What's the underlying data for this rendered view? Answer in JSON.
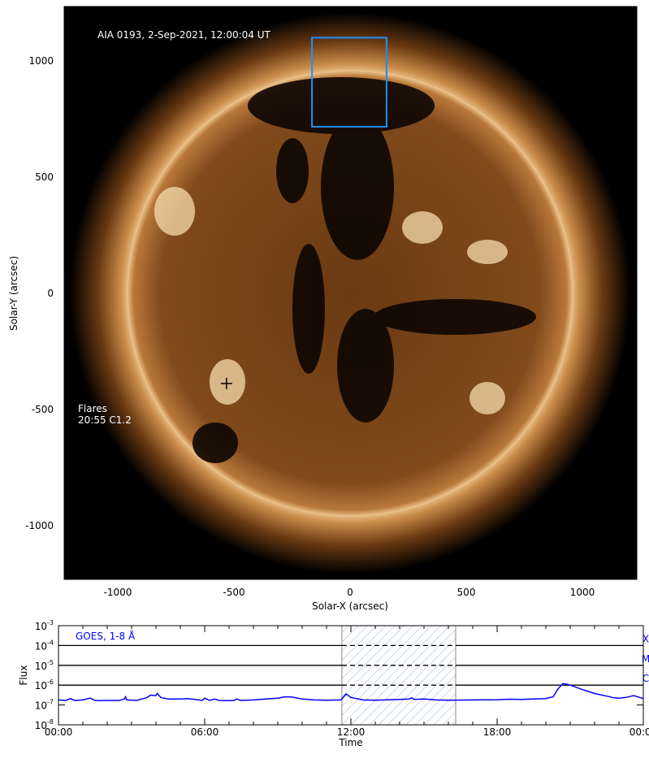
{
  "chart_data": [
    {
      "type": "heatmap",
      "title": "AIA 0193, 2-Sep-2021, 12:00:04 UT",
      "xlabel": "Solar-X (arcsec)",
      "ylabel": "Solar-Y (arcsec)",
      "xlim": [
        -1230,
        1230
      ],
      "ylim": [
        -1230,
        1230
      ],
      "xticks": [
        -1000,
        -500,
        0,
        500,
        1000
      ],
      "yticks": [
        1000,
        500,
        0,
        -500,
        -1000
      ],
      "colormap": "sdoaia193",
      "solar_radius_arcsec": 955,
      "highlight_box": {
        "x": [
          -164,
          157
        ],
        "y": [
          717,
          1100
        ],
        "color": "#1e90ff"
      },
      "flare_marker": {
        "x": -532,
        "y": -388
      },
      "annotation": {
        "heading": "Flares",
        "entry": "20:55 C1.2"
      }
    },
    {
      "type": "line",
      "legend": "GOES, 1-8 Å",
      "xlabel": "Time",
      "ylabel": "Flux",
      "xlim": [
        0,
        24
      ],
      "xticks": [
        "00:00",
        "06:00",
        "12:00",
        "18:00",
        "00:00"
      ],
      "yscale": "log",
      "ylim": [
        1e-08,
        0.001
      ],
      "yticks": [
        "10-3",
        "10-4",
        "10-5",
        "10-6",
        "10-7",
        "10-8"
      ],
      "class_lines": [
        {
          "label": "X",
          "flux": 0.0001
        },
        {
          "label": "M",
          "flux": 1e-05
        },
        {
          "label": "C",
          "flux": 1e-06
        }
      ],
      "shaded_interval_hours": [
        11.63,
        16.3
      ],
      "color": "#0000ff",
      "x": [
        0,
        0.3,
        0.5,
        0.6,
        0.7,
        0.8,
        1.0,
        1.3,
        1.5,
        1.7,
        2.0,
        2.5,
        2.7,
        2.75,
        2.8,
        3.2,
        3.6,
        3.8,
        3.9,
        4.0,
        4.05,
        4.2,
        4.5,
        5.0,
        5.3,
        5.6,
        5.9,
        6.0,
        6.2,
        6.4,
        6.6,
        7.0,
        7.2,
        7.3,
        7.5,
        8.0,
        8.5,
        9.0,
        9.3,
        9.6,
        10.0,
        10.5,
        11.0,
        11.6,
        11.8,
        12.0,
        12.5,
        13.0,
        14.0,
        14.4,
        14.5,
        14.6,
        15.0,
        15.5,
        16.0,
        17.0,
        18.0,
        18.5,
        19.0,
        19.5,
        20.0,
        20.3,
        20.5,
        20.7,
        20.9,
        21.5,
        22.0,
        22.5,
        22.8,
        23.0,
        23.3,
        23.6,
        24.0
      ],
      "y": [
        1.8e-07,
        1.7e-07,
        2.1e-07,
        1.8e-07,
        1.7e-07,
        1.75e-07,
        1.8e-07,
        2.2e-07,
        1.7e-07,
        1.65e-07,
        1.7e-07,
        1.7e-07,
        2e-07,
        2.6e-07,
        1.8e-07,
        1.7e-07,
        2.3e-07,
        3.2e-07,
        3e-07,
        3e-07,
        3.8e-07,
        2.4e-07,
        2e-07,
        2e-07,
        2.1e-07,
        1.9e-07,
        1.7e-07,
        2.2e-07,
        1.7e-07,
        2e-07,
        1.7e-07,
        1.65e-07,
        1.7e-07,
        2e-07,
        1.7e-07,
        1.8e-07,
        2e-07,
        2.2e-07,
        2.6e-07,
        2.5e-07,
        2e-07,
        1.8e-07,
        1.75e-07,
        1.8e-07,
        3.6e-07,
        2.4e-07,
        1.8e-07,
        1.75e-07,
        1.9e-07,
        2e-07,
        2.3e-07,
        1.9e-07,
        2e-07,
        1.8e-07,
        1.75e-07,
        1.8e-07,
        1.85e-07,
        1.95e-07,
        1.9e-07,
        2e-07,
        2.1e-07,
        2.6e-07,
        6.5e-07,
        1.2e-06,
        1.1e-06,
        6e-07,
        3.8e-07,
        2.8e-07,
        2.3e-07,
        2.2e-07,
        2.4e-07,
        3e-07,
        2.1e-07
      ]
    }
  ]
}
